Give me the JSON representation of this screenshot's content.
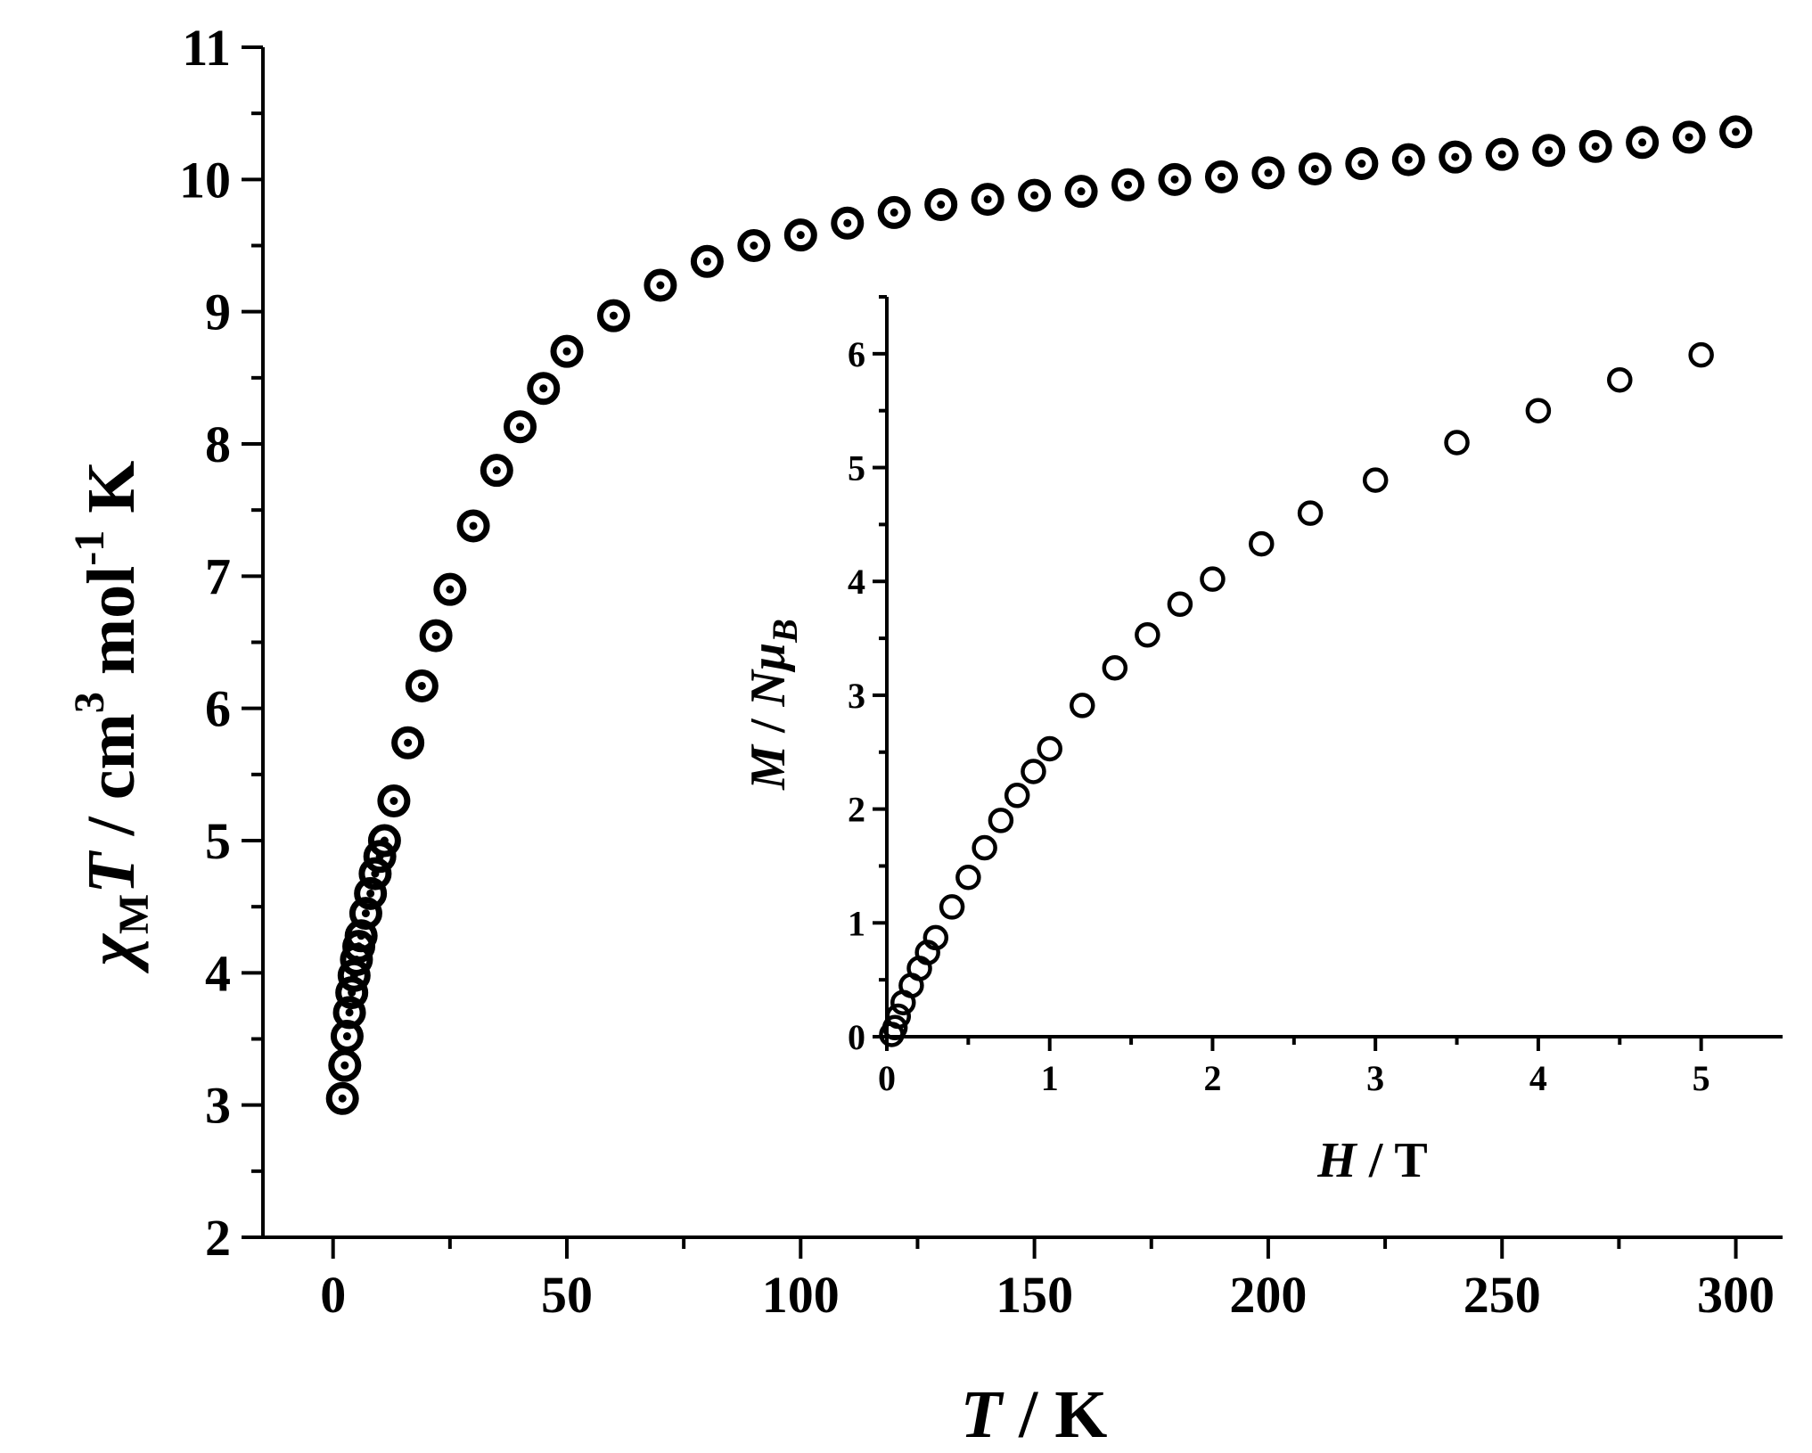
{
  "chart_data": [
    {
      "type": "scatter",
      "name": "main",
      "series": [
        {
          "name": "chiMT vs T",
          "x": [
            2,
            2.5,
            3,
            3.5,
            4,
            4.5,
            5,
            5.5,
            6,
            7,
            8,
            9,
            10,
            11,
            13,
            16,
            19,
            22,
            25,
            30,
            35,
            40,
            45,
            50,
            60,
            70,
            80,
            90,
            100,
            110,
            120,
            130,
            140,
            150,
            160,
            170,
            180,
            190,
            200,
            210,
            220,
            230,
            240,
            250,
            260,
            270,
            280,
            290,
            300
          ],
          "y": [
            3.05,
            3.3,
            3.52,
            3.7,
            3.85,
            3.98,
            4.1,
            4.2,
            4.28,
            4.45,
            4.6,
            4.75,
            4.88,
            5.0,
            5.3,
            5.74,
            6.17,
            6.55,
            6.9,
            7.38,
            7.8,
            8.13,
            8.42,
            8.7,
            8.97,
            9.2,
            9.38,
            9.5,
            9.58,
            9.67,
            9.75,
            9.81,
            9.85,
            9.88,
            9.91,
            9.96,
            10.0,
            10.02,
            10.05,
            10.08,
            10.12,
            10.15,
            10.17,
            10.19,
            10.22,
            10.25,
            10.28,
            10.32,
            10.36
          ]
        }
      ],
      "xlim": [
        -15,
        310
      ],
      "ylim": [
        2,
        11
      ],
      "xticks": [
        0,
        50,
        100,
        150,
        200,
        250,
        300
      ],
      "yticks": [
        2,
        3,
        4,
        5,
        6,
        7,
        8,
        9,
        10,
        11
      ],
      "xlabel": {
        "italic": "T",
        "rest": " / K"
      },
      "ylabel": {
        "chi": "χ",
        "sub": "M",
        "italic": "T",
        "rest1": " / cm",
        "sup1": "3",
        "rest2": " mol",
        "sup2": "-1",
        "rest3": " K"
      }
    },
    {
      "type": "scatter",
      "name": "inset",
      "series": [
        {
          "name": "M vs H",
          "x": [
            0.03,
            0.05,
            0.07,
            0.1,
            0.15,
            0.2,
            0.25,
            0.3,
            0.4,
            0.5,
            0.6,
            0.7,
            0.8,
            0.9,
            1.0,
            1.2,
            1.4,
            1.6,
            1.8,
            2.0,
            2.3,
            2.6,
            3.0,
            3.5,
            4.0,
            4.5,
            5.0
          ],
          "y": [
            0.02,
            0.08,
            0.18,
            0.3,
            0.45,
            0.6,
            0.74,
            0.87,
            1.14,
            1.4,
            1.66,
            1.9,
            2.12,
            2.33,
            2.53,
            2.91,
            3.24,
            3.53,
            3.8,
            4.02,
            4.33,
            4.6,
            4.89,
            5.22,
            5.5,
            5.77,
            5.99
          ]
        }
      ],
      "xlim": [
        0,
        5.5
      ],
      "ylim": [
        0,
        6.5
      ],
      "xticks": [
        0,
        1,
        2,
        3,
        4,
        5
      ],
      "yticks": [
        0,
        1,
        2,
        3,
        4,
        5,
        6
      ],
      "xlabel": {
        "italic": "H",
        "rest": " / T"
      },
      "ylabel": {
        "italic1": "M",
        "rest": " / ",
        "italic2": "N",
        "mu": "μ",
        "sub": "B"
      }
    }
  ]
}
